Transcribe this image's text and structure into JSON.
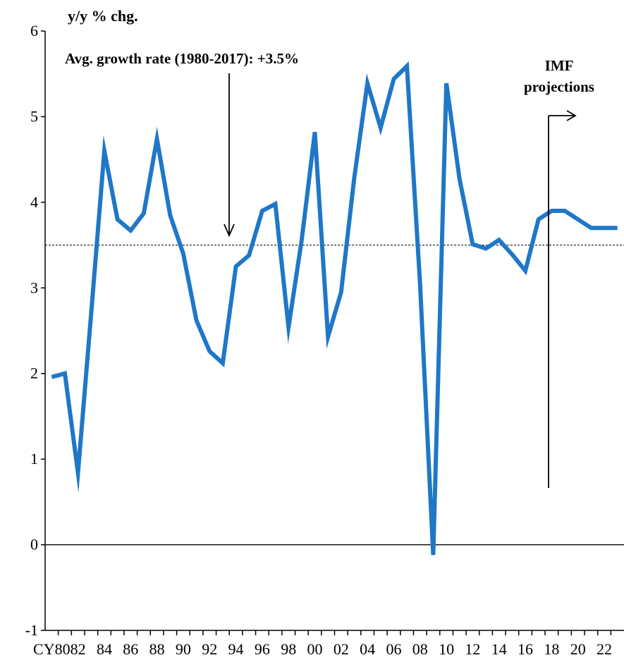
{
  "chart_data": {
    "type": "line",
    "ylabel": "y/y % chg.",
    "xlabel": "",
    "ylim": [
      -1,
      6
    ],
    "yticks": [
      -1,
      0,
      1,
      2,
      3,
      4,
      5,
      6
    ],
    "x_tick_labels": [
      {
        "year": 1980,
        "label": "CY80"
      },
      {
        "year": 1982,
        "label": "82"
      },
      {
        "year": 1984,
        "label": "84"
      },
      {
        "year": 1986,
        "label": "86"
      },
      {
        "year": 1988,
        "label": "88"
      },
      {
        "year": 1990,
        "label": "90"
      },
      {
        "year": 1992,
        "label": "92"
      },
      {
        "year": 1994,
        "label": "94"
      },
      {
        "year": 1996,
        "label": "96"
      },
      {
        "year": 1998,
        "label": "98"
      },
      {
        "year": 2000,
        "label": "00"
      },
      {
        "year": 2002,
        "label": "02"
      },
      {
        "year": 2004,
        "label": "04"
      },
      {
        "year": 2006,
        "label": "06"
      },
      {
        "year": 2008,
        "label": "08"
      },
      {
        "year": 2010,
        "label": "10"
      },
      {
        "year": 2012,
        "label": "12"
      },
      {
        "year": 2014,
        "label": "14"
      },
      {
        "year": 2016,
        "label": "16"
      },
      {
        "year": 2018,
        "label": "18"
      },
      {
        "year": 2020,
        "label": "20"
      },
      {
        "year": 2022,
        "label": "22"
      }
    ],
    "xlim": [
      1979.5,
      2023.5
    ],
    "series": [
      {
        "color": "#1f77c8",
        "x": [
          1980,
          1981,
          1982,
          1983,
          1984,
          1985,
          1986,
          1987,
          1988,
          1989,
          1990,
          1991,
          1992,
          1993,
          1994,
          1995,
          1996,
          1997,
          1998,
          1999,
          2000,
          2001,
          2002,
          2003,
          2004,
          2005,
          2006,
          2007,
          2008,
          2009,
          2010,
          2011,
          2012,
          2013,
          2014,
          2015,
          2016,
          2017,
          2018,
          2019,
          2020,
          2021,
          2022,
          2023
        ],
        "values": [
          1.96,
          2.0,
          0.84,
          2.7,
          4.6,
          3.8,
          3.67,
          3.87,
          4.74,
          3.85,
          3.4,
          2.62,
          2.26,
          2.12,
          3.25,
          3.38,
          3.9,
          3.98,
          2.54,
          3.56,
          4.82,
          2.43,
          2.95,
          4.29,
          5.39,
          4.87,
          5.44,
          5.59,
          3.04,
          -0.12,
          5.39,
          4.27,
          3.51,
          3.46,
          3.56,
          3.39,
          3.2,
          3.8,
          3.9,
          3.9,
          3.8,
          3.7,
          3.7,
          3.7
        ]
      }
    ],
    "reference_lines": [
      {
        "y": 3.5,
        "style": "dashed"
      },
      {
        "y": 0,
        "style": "solid"
      }
    ],
    "annotations": {
      "avg": "Avg. growth rate (1980-2017): +3.5%",
      "imf_line1": "IMF",
      "imf_line2": "projections"
    },
    "projection_start_year": 2017,
    "grid": false
  }
}
